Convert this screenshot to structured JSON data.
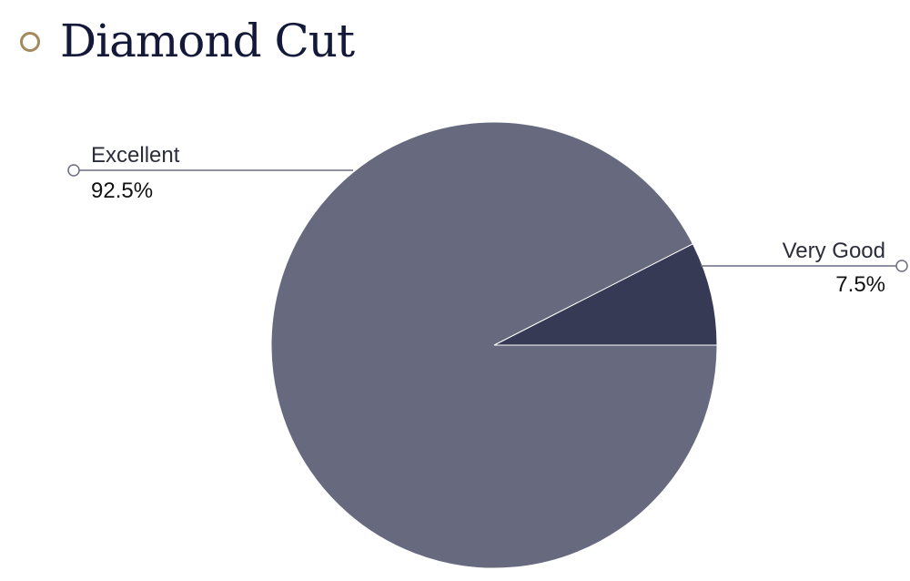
{
  "header": {
    "title": "Diamond Cut",
    "icon": "ring-icon",
    "icon_color": "#a28a5e"
  },
  "chart_data": {
    "type": "pie",
    "title": "Diamond Cut",
    "slices": [
      {
        "label": "Excellent",
        "value": 92.5,
        "value_label": "92.5%",
        "color": "#676a7e"
      },
      {
        "label": "Very Good",
        "value": 7.5,
        "value_label": "7.5%",
        "color": "#373a55"
      }
    ],
    "legend": "callouts"
  }
}
